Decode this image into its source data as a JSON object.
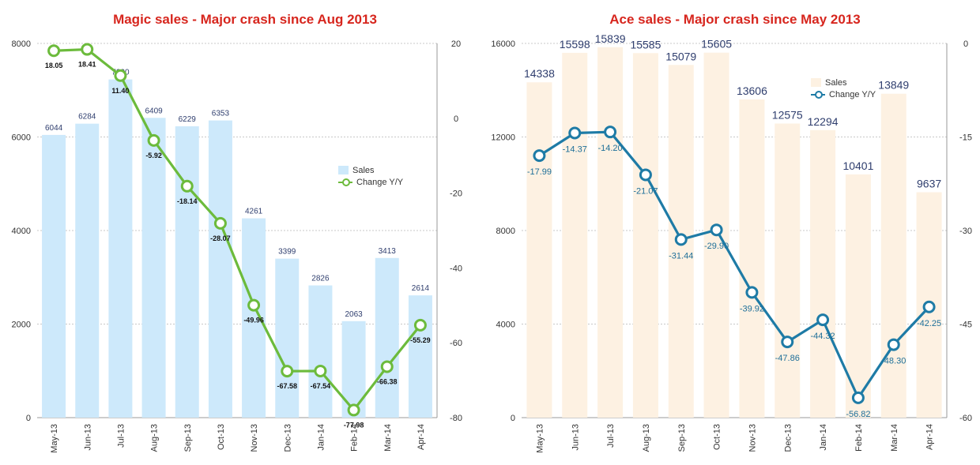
{
  "chart_data": [
    {
      "type": "bar",
      "title": "Magic sales - Major crash since Aug 2013",
      "title_color": "#d7261e",
      "categories": [
        "May-13",
        "Jun-13",
        "Jul-13",
        "Aug-13",
        "Sep-13",
        "Oct-13",
        "Nov-13",
        "Dec-13",
        "Jan-14",
        "Feb-14",
        "Mar-14",
        "Apr-14"
      ],
      "series": [
        {
          "name": "Sales",
          "type": "bar",
          "axis": "left",
          "color": "#cde9fb",
          "label_color": "#2f3e6e",
          "values": [
            6044,
            6284,
            7230,
            6409,
            6229,
            6353,
            4261,
            3399,
            2826,
            2063,
            3413,
            2614
          ]
        },
        {
          "name": "Change Y/Y",
          "type": "line",
          "axis": "right",
          "color": "#6cbb3c",
          "label_color": "#111111",
          "values": [
            18.05,
            18.41,
            11.4,
            -5.92,
            -18.14,
            -28.07,
            -49.96,
            -67.58,
            -67.54,
            -77.98,
            -66.38,
            -55.29
          ]
        }
      ],
      "left_axis": {
        "ylim": [
          0,
          8000
        ],
        "ticks": [
          "8000",
          "6000",
          "4000",
          "2000",
          "0"
        ]
      },
      "right_axis": {
        "ylim": [
          -80,
          20
        ],
        "ticks": [
          "20",
          "0",
          "-20",
          "-40",
          "-60",
          "-80"
        ]
      },
      "grid": true,
      "legend_position": "center-right"
    },
    {
      "type": "bar",
      "title": "Ace sales - Major crash since May 2013",
      "title_color": "#d7261e",
      "categories": [
        "May-13",
        "Jun-13",
        "Jul-13",
        "Aug-13",
        "Sep-13",
        "Oct-13",
        "Nov-13",
        "Dec-13",
        "Jan-14",
        "Feb-14",
        "Mar-14",
        "Apr-14"
      ],
      "series": [
        {
          "name": "Sales",
          "type": "bar",
          "axis": "left",
          "color": "#fdf1e2",
          "label_color": "#2f3e6e",
          "values": [
            14338,
            15598,
            15839,
            15585,
            15079,
            15605,
            13606,
            12575,
            12294,
            10401,
            13849,
            9637
          ]
        },
        {
          "name": "Change Y/Y",
          "type": "line",
          "axis": "right",
          "color": "#1e7ba6",
          "label_color": "#1e6f99",
          "values": [
            -17.99,
            -14.37,
            -14.2,
            -21.07,
            -31.44,
            -29.9,
            -39.92,
            -47.86,
            -44.32,
            -56.82,
            -48.3,
            -42.25
          ]
        }
      ],
      "left_axis": {
        "ylim": [
          0,
          16000
        ],
        "ticks": [
          "16000",
          "12000",
          "8000",
          "4000",
          "0"
        ]
      },
      "right_axis": {
        "ylim": [
          -60,
          0
        ],
        "ticks": [
          "0",
          "-15",
          "-30",
          "-45",
          "-60"
        ]
      },
      "grid": true,
      "legend_position": "top-right"
    }
  ]
}
